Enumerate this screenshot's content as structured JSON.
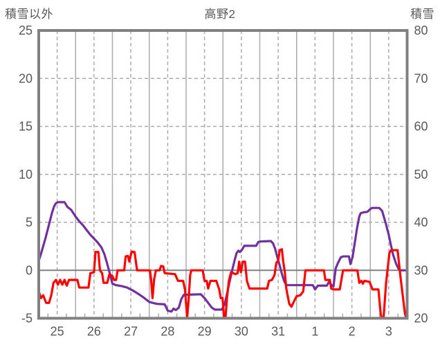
{
  "header": {
    "left_axis_title": "積雪以外",
    "chart_title": "高野2",
    "right_axis_title": "積雪"
  },
  "chart_data": {
    "type": "line",
    "title": "高野2",
    "grid": {
      "on": true,
      "line_color": "#ABABAB",
      "border_color": "#808080",
      "zero_line_color": "#808080",
      "text_color": "#595959"
    },
    "left_axis": {
      "label": "積雪以外",
      "min": -5,
      "max": 25,
      "ticks": [
        25,
        20,
        15,
        10,
        5,
        0,
        -5
      ]
    },
    "right_axis": {
      "label": "積雪",
      "min": 20,
      "max": 80,
      "ticks": [
        80,
        70,
        60,
        50,
        40,
        30,
        20
      ]
    },
    "x_axis": {
      "labels": [
        "25",
        "26",
        "27",
        "28",
        "29",
        "30",
        "31",
        "1",
        "2",
        "3"
      ],
      "days": 10
    },
    "legend": {
      "visible": false
    },
    "series": [
      {
        "name": "積雪",
        "axis": "right",
        "color": "#7030A0",
        "points": [
          [
            0.0,
            32.0
          ],
          [
            0.06,
            33.4
          ],
          [
            0.12,
            35.0
          ],
          [
            0.18,
            36.6
          ],
          [
            0.24,
            38.4
          ],
          [
            0.3,
            40.2
          ],
          [
            0.36,
            42.0
          ],
          [
            0.42,
            43.4
          ],
          [
            0.47,
            44.0
          ],
          [
            0.52,
            44.2
          ],
          [
            0.7,
            44.2
          ],
          [
            0.78,
            43.2
          ],
          [
            0.88,
            42.6
          ],
          [
            1.0,
            41.2
          ],
          [
            1.1,
            40.2
          ],
          [
            1.2,
            39.4
          ],
          [
            1.3,
            38.4
          ],
          [
            1.4,
            37.4
          ],
          [
            1.5,
            36.6
          ],
          [
            1.6,
            35.8
          ],
          [
            1.7,
            34.8
          ],
          [
            1.78,
            33.4
          ],
          [
            1.85,
            31.6
          ],
          [
            1.92,
            29.6
          ],
          [
            2.0,
            27.2
          ],
          [
            2.1,
            26.9
          ],
          [
            2.25,
            26.7
          ],
          [
            2.4,
            26.4
          ],
          [
            2.55,
            25.8
          ],
          [
            2.7,
            25.1
          ],
          [
            2.85,
            24.3
          ],
          [
            3.0,
            23.4
          ],
          [
            3.2,
            23.0
          ],
          [
            3.42,
            22.9
          ],
          [
            3.5,
            21.6
          ],
          [
            3.6,
            21.4
          ],
          [
            3.66,
            22.0
          ],
          [
            3.72,
            21.7
          ],
          [
            3.8,
            22.2
          ],
          [
            3.87,
            24.0
          ],
          [
            3.94,
            24.9
          ],
          [
            4.4,
            25.0
          ],
          [
            4.5,
            24.2
          ],
          [
            4.6,
            23.2
          ],
          [
            4.7,
            22.2
          ],
          [
            4.78,
            21.8
          ],
          [
            4.97,
            21.8
          ],
          [
            5.05,
            23.0
          ],
          [
            5.12,
            25.4
          ],
          [
            5.18,
            27.6
          ],
          [
            5.25,
            30.0
          ],
          [
            5.31,
            31.9
          ],
          [
            5.37,
            33.6
          ],
          [
            5.42,
            34.1
          ],
          [
            5.46,
            33.8
          ],
          [
            5.52,
            34.3
          ],
          [
            5.58,
            35.1
          ],
          [
            5.9,
            35.1
          ],
          [
            5.96,
            35.9
          ],
          [
            6.02,
            36.0
          ],
          [
            6.3,
            36.1
          ],
          [
            6.36,
            35.6
          ],
          [
            6.42,
            34.4
          ],
          [
            6.48,
            32.6
          ],
          [
            6.54,
            31.0
          ],
          [
            6.6,
            29.3
          ],
          [
            6.66,
            27.8
          ],
          [
            6.72,
            26.9
          ],
          [
            7.44,
            26.9
          ],
          [
            7.5,
            26.0
          ],
          [
            7.58,
            26.8
          ],
          [
            7.82,
            26.8
          ],
          [
            7.88,
            27.6
          ],
          [
            7.95,
            26.9
          ],
          [
            8.0,
            26.6
          ],
          [
            8.06,
            30.4
          ],
          [
            8.12,
            31.5
          ],
          [
            8.2,
            32.7
          ],
          [
            8.26,
            32.9
          ],
          [
            8.42,
            32.9
          ],
          [
            8.46,
            31.3
          ],
          [
            8.52,
            32.8
          ],
          [
            8.58,
            35.8
          ],
          [
            8.64,
            38.8
          ],
          [
            8.7,
            41.2
          ],
          [
            8.74,
            41.9
          ],
          [
            8.82,
            42.1
          ],
          [
            8.92,
            42.2
          ],
          [
            9.02,
            42.9
          ],
          [
            9.06,
            43.0
          ],
          [
            9.24,
            43.0
          ],
          [
            9.32,
            42.4
          ],
          [
            9.42,
            39.8
          ],
          [
            9.5,
            37.4
          ],
          [
            9.56,
            35.2
          ],
          [
            9.62,
            33.2
          ],
          [
            9.7,
            31.4
          ],
          [
            9.76,
            30.4
          ],
          [
            9.82,
            30.0
          ],
          [
            9.99,
            30.0
          ]
        ]
      },
      {
        "name": "積雪以外",
        "axis": "left",
        "color": "#FF0000",
        "points": [
          [
            0.0,
            -2.2
          ],
          [
            0.06,
            -2.9
          ],
          [
            0.12,
            -2.6
          ],
          [
            0.2,
            -3.4
          ],
          [
            0.28,
            -3.4
          ],
          [
            0.34,
            -2.6
          ],
          [
            0.4,
            -1.3
          ],
          [
            0.47,
            -1.0
          ],
          [
            0.52,
            -1.5
          ],
          [
            0.58,
            -1.0
          ],
          [
            0.64,
            -1.5
          ],
          [
            0.7,
            -1.0
          ],
          [
            0.76,
            -1.6
          ],
          [
            0.82,
            -1.0
          ],
          [
            1.05,
            -1.0
          ],
          [
            1.1,
            -1.8
          ],
          [
            1.35,
            -1.8
          ],
          [
            1.4,
            -0.3
          ],
          [
            1.5,
            -0.2
          ],
          [
            1.54,
            1.9
          ],
          [
            1.62,
            1.9
          ],
          [
            1.66,
            0.0
          ],
          [
            1.72,
            -0.3
          ],
          [
            1.76,
            -1.3
          ],
          [
            1.86,
            -1.3
          ],
          [
            1.92,
            -0.4
          ],
          [
            2.0,
            -0.6
          ],
          [
            2.04,
            -1.0
          ],
          [
            2.1,
            -1.0
          ],
          [
            2.14,
            0.0
          ],
          [
            2.32,
            0.0
          ],
          [
            2.36,
            1.45
          ],
          [
            2.42,
            1.5
          ],
          [
            2.46,
            0.9
          ],
          [
            2.52,
            1.95
          ],
          [
            2.6,
            1.9
          ],
          [
            2.64,
            0.8
          ],
          [
            2.67,
            0.0
          ],
          [
            3.02,
            0.0
          ],
          [
            3.05,
            -1.0
          ],
          [
            3.09,
            -2.9
          ],
          [
            3.13,
            -1.0
          ],
          [
            3.18,
            0.0
          ],
          [
            3.28,
            0.0
          ],
          [
            3.32,
            0.45
          ],
          [
            3.38,
            0.4
          ],
          [
            3.42,
            -0.3
          ],
          [
            3.7,
            -0.4
          ],
          [
            3.78,
            -1.1
          ],
          [
            3.92,
            -1.1
          ],
          [
            3.97,
            -2.0
          ],
          [
            4.0,
            -3.5
          ],
          [
            4.03,
            -4.9
          ],
          [
            4.07,
            -3.0
          ],
          [
            4.11,
            -0.5
          ],
          [
            4.14,
            0.0
          ],
          [
            4.45,
            0.0
          ],
          [
            4.5,
            -1.1
          ],
          [
            4.56,
            -1.1
          ],
          [
            4.6,
            -1.9
          ],
          [
            4.66,
            -1.1
          ],
          [
            4.82,
            -1.1
          ],
          [
            4.9,
            -2.0
          ],
          [
            4.94,
            -2.9
          ],
          [
            4.99,
            -2.9
          ],
          [
            5.03,
            -4.9
          ],
          [
            5.07,
            -4.9
          ],
          [
            5.11,
            -2.9
          ],
          [
            5.16,
            -1.1
          ],
          [
            5.22,
            -0.2
          ],
          [
            5.34,
            -0.4
          ],
          [
            5.4,
            -0.3
          ],
          [
            5.44,
            0.9
          ],
          [
            5.49,
            -0.2
          ],
          [
            5.54,
            0.9
          ],
          [
            5.6,
            0.9
          ],
          [
            5.65,
            -1.1
          ],
          [
            5.72,
            -1.9
          ],
          [
            6.2,
            -1.9
          ],
          [
            6.25,
            -1.1
          ],
          [
            6.33,
            -1.0
          ],
          [
            6.4,
            -0.5
          ],
          [
            6.45,
            0.8
          ],
          [
            6.5,
            1.0
          ],
          [
            6.54,
            2.1
          ],
          [
            6.6,
            2.2
          ],
          [
            6.64,
            0.8
          ],
          [
            6.68,
            -0.2
          ],
          [
            6.72,
            -1.9
          ],
          [
            6.8,
            -3.5
          ],
          [
            6.86,
            -3.8
          ],
          [
            6.92,
            -3.3
          ],
          [
            7.0,
            -2.7
          ],
          [
            7.1,
            -2.6
          ],
          [
            7.18,
            -2.2
          ],
          [
            7.24,
            0.0
          ],
          [
            7.74,
            0.0
          ],
          [
            7.78,
            -1.0
          ],
          [
            7.9,
            -1.0
          ],
          [
            7.94,
            -1.9
          ],
          [
            8.0,
            -2.0
          ],
          [
            8.17,
            -2.0
          ],
          [
            8.26,
            0.0
          ],
          [
            8.65,
            0.0
          ],
          [
            8.7,
            -1.3
          ],
          [
            8.76,
            -1.1
          ],
          [
            8.8,
            -1.4
          ],
          [
            8.84,
            -1.1
          ],
          [
            8.98,
            -1.2
          ],
          [
            9.06,
            -2.0
          ],
          [
            9.22,
            -2.0
          ],
          [
            9.28,
            -4.5
          ],
          [
            9.31,
            -5.0
          ],
          [
            9.36,
            -5.0
          ],
          [
            9.43,
            -1.3
          ],
          [
            9.52,
            1.8
          ],
          [
            9.56,
            2.1
          ],
          [
            9.74,
            2.1
          ],
          [
            9.78,
            0.7
          ],
          [
            9.82,
            -0.7
          ],
          [
            9.88,
            -2.6
          ],
          [
            9.94,
            -4.5
          ],
          [
            9.98,
            -5.0
          ]
        ]
      }
    ]
  }
}
